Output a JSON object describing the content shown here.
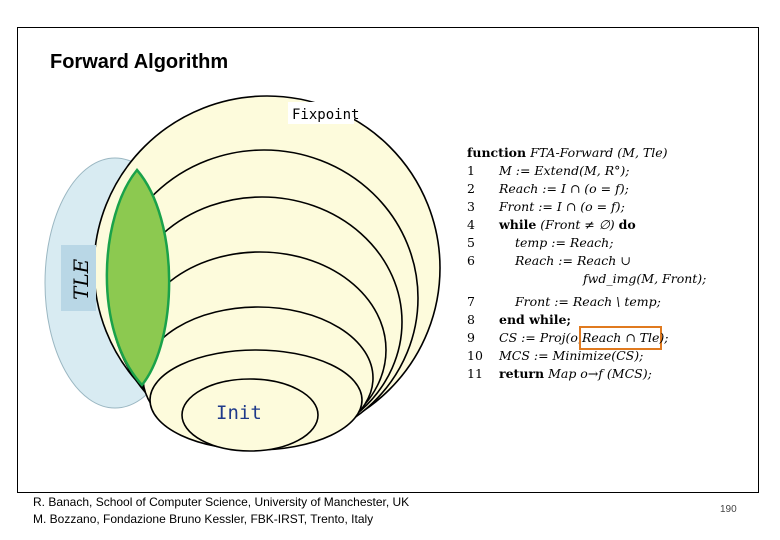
{
  "slide": {
    "title": "Forward Algorithm",
    "page_number": "190"
  },
  "diagram": {
    "fixpoint_label": "Fixpoint",
    "tle_label": "TLE",
    "init_label": "Init",
    "colors": {
      "tle_fill": "#d8ebf2",
      "reach_fill": "#fdfbdc",
      "intersection_fill": "#8cc950",
      "intersection_stroke": "#1aa24a",
      "highlight_box": "#e07a1f"
    }
  },
  "algorithm": {
    "header_keyword": "function",
    "header_text": "FTA-Forward (M, Tle)",
    "lines": [
      {
        "num": "1",
        "kw": "",
        "text": "M := Extend(M, R°);"
      },
      {
        "num": "2",
        "kw": "",
        "text": "Reach := I ∩ (o = f);"
      },
      {
        "num": "3",
        "kw": "",
        "text": "Front := I ∩ (o = f);"
      },
      {
        "num": "4",
        "kw": "while",
        "text": "(Front ≠ ∅)",
        "kw2": "do"
      },
      {
        "num": "5",
        "kw": "",
        "text": "temp := Reach;"
      },
      {
        "num": "6",
        "kw": "",
        "text": "Reach := Reach ∪"
      },
      {
        "num": "",
        "kw": "",
        "text": "fwd_img(M, Front);"
      },
      {
        "num": "7",
        "kw": "",
        "text": "Front := Reach \\ temp;"
      },
      {
        "num": "8",
        "kw": "end while;",
        "text": ""
      },
      {
        "num": "9",
        "kw": "",
        "text": "CS := Proj(o,",
        "highlight": "Reach ∩ Tle",
        "tail": ");"
      },
      {
        "num": "10",
        "kw": "",
        "text": "MCS := Minimize(CS);"
      },
      {
        "num": "11",
        "kw": "return",
        "text": "Map o→f (MCS);"
      }
    ]
  },
  "footer": {
    "line1": "R. Banach, School of Computer Science, University of Manchester, UK",
    "line2": "M. Bozzano, Fondazione Bruno Kessler, FBK-IRST, Trento, Italy"
  }
}
